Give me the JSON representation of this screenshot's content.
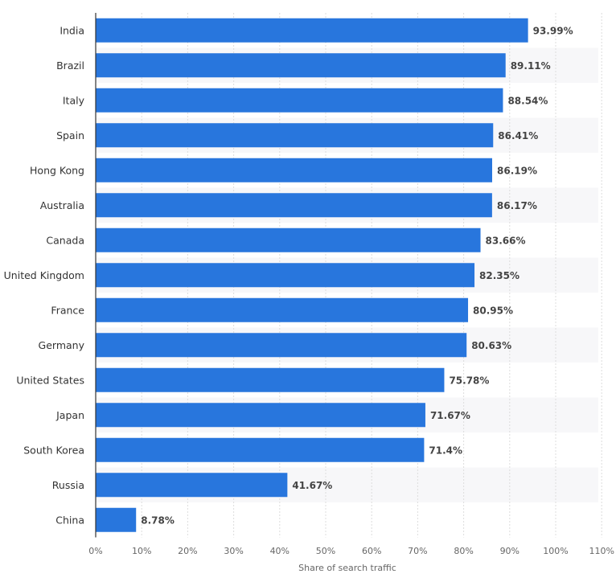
{
  "chart_data": {
    "type": "bar",
    "orientation": "horizontal",
    "categories": [
      "India",
      "Brazil",
      "Italy",
      "Spain",
      "Hong Kong",
      "Australia",
      "Canada",
      "United Kingdom",
      "France",
      "Germany",
      "United States",
      "Japan",
      "South Korea",
      "Russia",
      "China"
    ],
    "values": [
      93.99,
      89.11,
      88.54,
      86.41,
      86.19,
      86.17,
      83.66,
      82.35,
      80.95,
      80.63,
      75.78,
      71.67,
      71.4,
      41.67,
      8.78
    ],
    "data_labels": [
      "93.99%",
      "89.11%",
      "88.54%",
      "86.41%",
      "86.19%",
      "86.17%",
      "83.66%",
      "82.35%",
      "80.95%",
      "80.63%",
      "75.78%",
      "71.67%",
      "71.4%",
      "41.67%",
      "8.78%"
    ],
    "xlabel": "Share of search traffic",
    "ylabel": "",
    "xlim": [
      0,
      110
    ],
    "xticks": [
      "0%",
      "10%",
      "20%",
      "30%",
      "40%",
      "50%",
      "60%",
      "70%",
      "80%",
      "90%",
      "100%",
      "110%"
    ],
    "grid": true,
    "colors": {
      "bar": "#2876dd",
      "band": "#f7f7f9",
      "grid": "#dddddd",
      "axis": "#333333",
      "label": "#333333",
      "tick": "#666666"
    }
  }
}
